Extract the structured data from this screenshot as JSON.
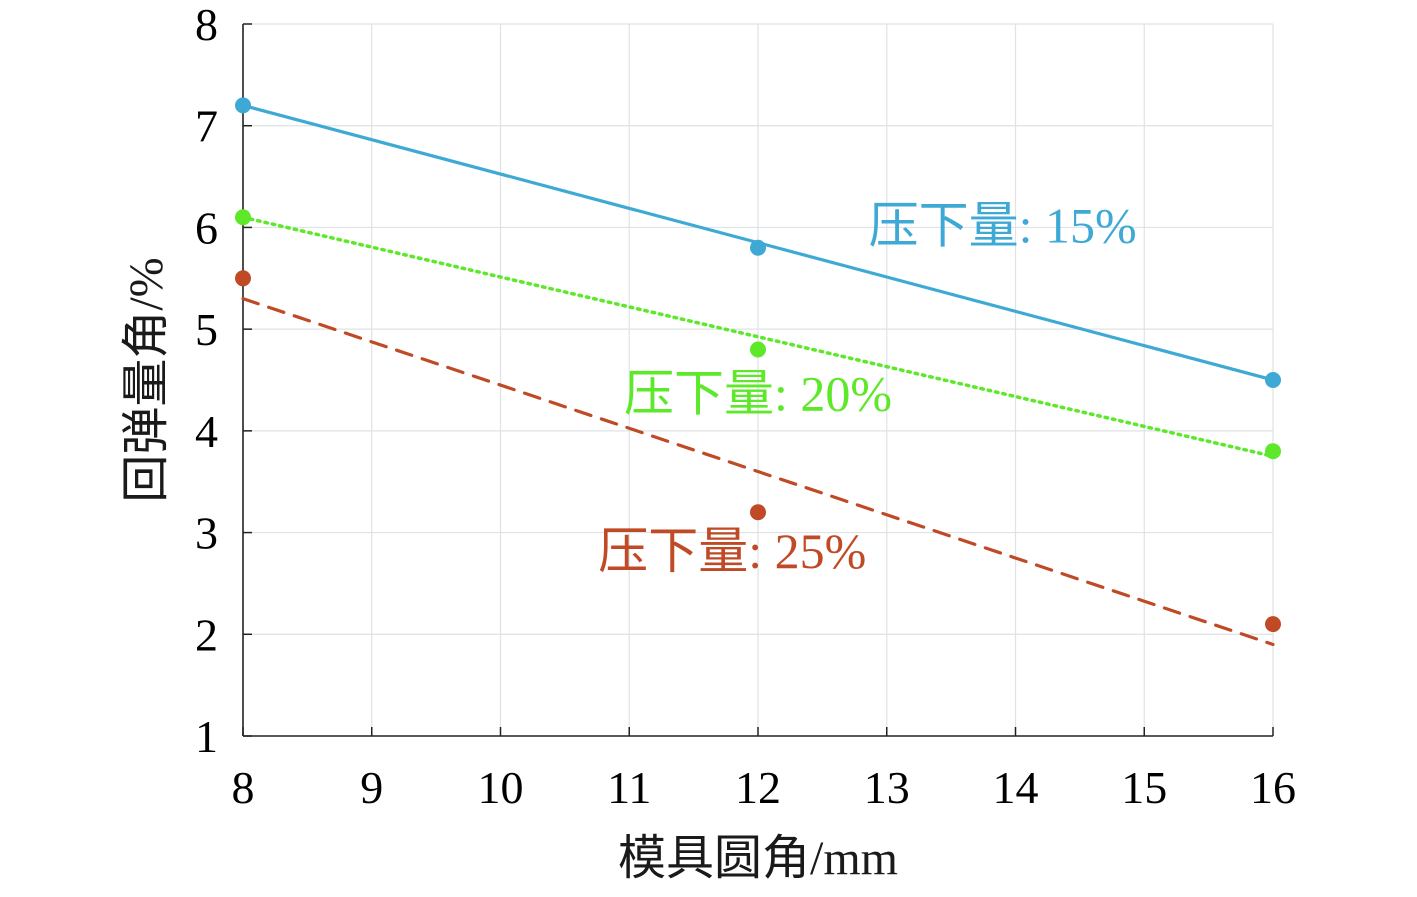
{
  "chart_data": {
    "type": "line",
    "xlabel": "模具圆角/mm",
    "ylabel": "回弹量角/%",
    "xlim": [
      8,
      16
    ],
    "ylim": [
      1,
      8
    ],
    "xticks": [
      "8",
      "9",
      "10",
      "11",
      "12",
      "13",
      "14",
      "15",
      "16"
    ],
    "yticks": [
      "1",
      "2",
      "3",
      "4",
      "5",
      "6",
      "7",
      "8"
    ],
    "grid": true,
    "series": [
      {
        "name": "压下量: 15%",
        "color": "#3fa9d6",
        "line_style": "solid",
        "points": [
          {
            "x": 8,
            "y": 7.2
          },
          {
            "x": 12,
            "y": 5.8
          },
          {
            "x": 16,
            "y": 4.5
          }
        ],
        "fit_line": [
          {
            "x": 8,
            "y": 7.2
          },
          {
            "x": 16,
            "y": 4.5
          }
        ]
      },
      {
        "name": "压下量: 20%",
        "color": "#5de829",
        "line_style": "dotted",
        "points": [
          {
            "x": 8,
            "y": 6.1
          },
          {
            "x": 12,
            "y": 4.8
          },
          {
            "x": 16,
            "y": 3.8
          }
        ],
        "fit_line": [
          {
            "x": 8,
            "y": 6.1
          },
          {
            "x": 16,
            "y": 3.75
          }
        ]
      },
      {
        "name": "压下量: 25%",
        "color": "#c04a25",
        "line_style": "dashed",
        "points": [
          {
            "x": 8,
            "y": 5.5
          },
          {
            "x": 12,
            "y": 3.2
          },
          {
            "x": 16,
            "y": 2.1
          }
        ],
        "fit_line": [
          {
            "x": 8,
            "y": 5.3
          },
          {
            "x": 16,
            "y": 1.9
          }
        ]
      }
    ],
    "annotations": [
      {
        "text": "压下量: 15%",
        "series": 0,
        "x": 13.9,
        "y": 5.85
      },
      {
        "text": "压下量: 20%",
        "series": 1,
        "x": 12.0,
        "y": 4.2
      },
      {
        "text": "压下量: 25%",
        "series": 2,
        "x": 11.8,
        "y": 2.65
      }
    ]
  }
}
